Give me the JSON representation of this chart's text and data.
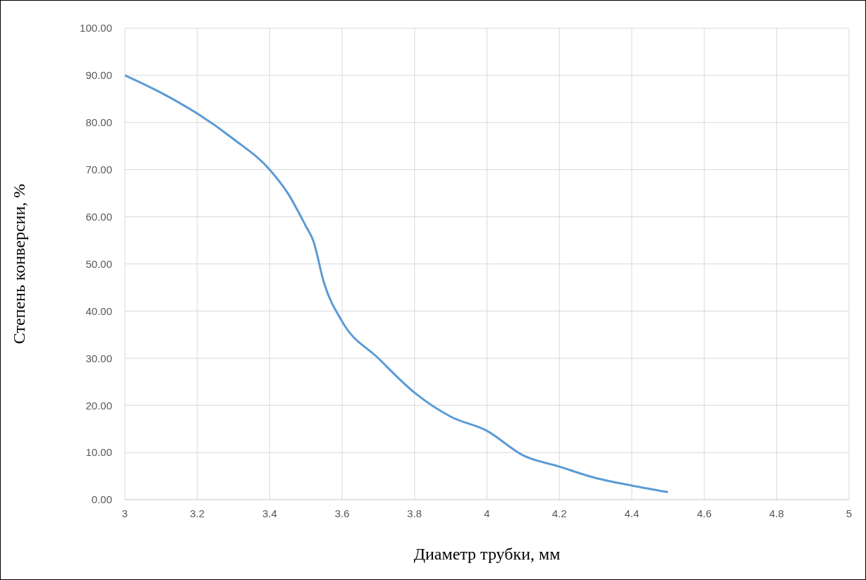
{
  "chart_data": {
    "type": "line",
    "xlabel": "Диаметр трубки, мм",
    "ylabel": "Степень конверсии, %",
    "x": [
      3,
      3.1,
      3.2,
      3.3,
      3.4,
      3.45,
      3.5,
      3.52,
      3.55,
      3.6,
      3.7,
      3.8,
      3.9,
      4,
      4.1,
      4.2,
      4.3,
      4.4,
      4.5
    ],
    "series": [
      {
        "color": "#5b9bd5",
        "values": [
          90,
          86.3,
          81.9,
          76.5,
          70,
          65,
          58,
          55,
          46,
          37.8,
          30,
          22.7,
          17.6,
          14.6,
          9.4,
          7,
          4.6,
          3,
          1.6
        ]
      }
    ],
    "xlim": [
      3,
      5
    ],
    "xticks": [
      3,
      3.2,
      3.4,
      3.6,
      3.8,
      4,
      4.2,
      4.4,
      4.6,
      4.8,
      5
    ],
    "ylim": [
      0,
      100
    ],
    "yticks": [
      {
        "value": 0,
        "label": "0.00"
      },
      {
        "value": 10,
        "label": "10.00"
      },
      {
        "value": 20,
        "label": "20.00"
      },
      {
        "value": 30,
        "label": "30.00"
      },
      {
        "value": 40,
        "label": "40.00"
      },
      {
        "value": 50,
        "label": "50.00"
      },
      {
        "value": 60,
        "label": "60.00"
      },
      {
        "value": 70,
        "label": "70.00"
      },
      {
        "value": 80,
        "label": "80.00"
      },
      {
        "value": 90,
        "label": "90.00"
      },
      {
        "value": 100,
        "label": "100.00"
      }
    ],
    "grid": true
  }
}
